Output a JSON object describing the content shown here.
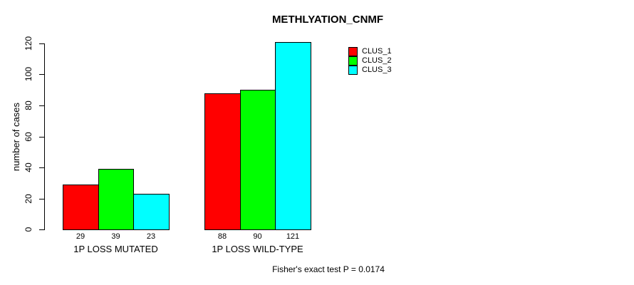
{
  "chart_data": {
    "type": "bar",
    "title": "METHLYATION_CNMF",
    "categories": [
      "1P LOSS MUTATED",
      "1P LOSS WILD-TYPE"
    ],
    "series": [
      {
        "name": "CLUS_1",
        "color": "#ff0000",
        "values": [
          29,
          88
        ]
      },
      {
        "name": "CLUS_2",
        "color": "#00ff00",
        "values": [
          39,
          90
        ]
      },
      {
        "name": "CLUS_3",
        "color": "#00ffff",
        "values": [
          23,
          121
        ]
      }
    ],
    "xlabel": "",
    "ylabel": "number of cases",
    "ylim": [
      0,
      120
    ],
    "yticks": [
      0,
      20,
      40,
      60,
      80,
      100,
      120
    ],
    "bar_value_labels": true,
    "grid": false,
    "legend_position": "top-right",
    "legend_border": false,
    "bar_border_color": "#000000",
    "background_color": "#ffffff",
    "annotation": "Fisher's exact test P = 0.0174"
  }
}
